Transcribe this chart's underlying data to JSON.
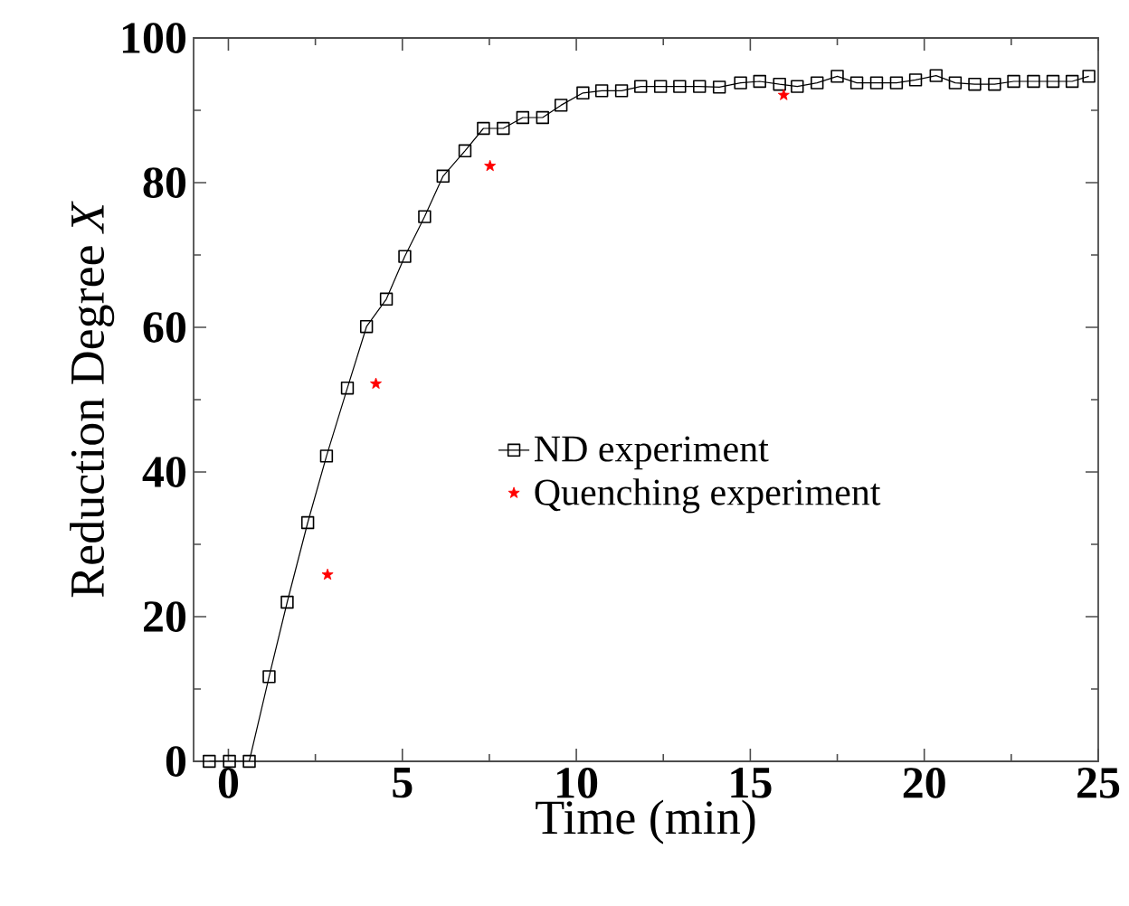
{
  "chart_data": {
    "type": "line",
    "xlabel": "Time (min)",
    "ylabel": "Reduction Degree *X*",
    "xlim": [
      -1,
      25
    ],
    "ylim": [
      0,
      100
    ],
    "xticks": [
      0,
      {
        "value": 2.5,
        "label": null
      },
      5,
      {
        "value": 7.5,
        "label": null
      },
      10,
      {
        "value": 12.5,
        "label": null
      },
      15,
      {
        "value": 17.5,
        "label": null
      },
      20,
      {
        "value": 22.5,
        "label": null
      },
      25
    ],
    "yticks": [
      0,
      {
        "value": 10,
        "label": null
      },
      20,
      {
        "value": 30,
        "label": null
      },
      40,
      {
        "value": 50,
        "label": null
      },
      60,
      {
        "value": 70,
        "label": null
      },
      80,
      {
        "value": 90,
        "label": null
      },
      100
    ],
    "grid": false,
    "legend": "right",
    "series": [
      {
        "name": "ND experiment",
        "color": "#000000",
        "marker": "square",
        "line_style": "solid",
        "x": [
          -0.55,
          0.03,
          0.6,
          1.17,
          1.69,
          2.28,
          2.82,
          3.42,
          3.97,
          4.54,
          5.07,
          5.64,
          6.17,
          6.8,
          7.33,
          7.9,
          8.46,
          9.03,
          9.56,
          10.19,
          10.73,
          11.3,
          11.85,
          12.42,
          12.97,
          13.54,
          14.11,
          14.72,
          15.27,
          15.84,
          16.35,
          16.92,
          17.5,
          18.06,
          18.63,
          19.2,
          19.75,
          20.34,
          20.89,
          21.45,
          22.02,
          22.57,
          23.14,
          23.7,
          24.25,
          24.73
        ],
        "values": [
          0,
          0,
          0,
          11.7,
          22.0,
          33.0,
          42.2,
          51.6,
          60.1,
          63.9,
          69.8,
          75.3,
          80.9,
          84.4,
          87.5,
          87.5,
          89.0,
          89.0,
          90.7,
          92.4,
          92.7,
          92.7,
          93.3,
          93.3,
          93.3,
          93.3,
          93.2,
          93.8,
          94.0,
          93.6,
          93.3,
          93.8,
          94.7,
          93.8,
          93.8,
          93.8,
          94.2,
          94.8,
          93.8,
          93.6,
          93.6,
          94.0,
          94.0,
          94.0,
          94.0,
          94.7
        ]
      },
      {
        "name": "Quenching experiment",
        "type": "scatter",
        "color": "#ff0000",
        "marker": "star",
        "x": [
          2.85,
          4.24,
          7.52,
          15.96
        ],
        "values": [
          25.8,
          52.2,
          82.3,
          92.1
        ]
      }
    ]
  }
}
